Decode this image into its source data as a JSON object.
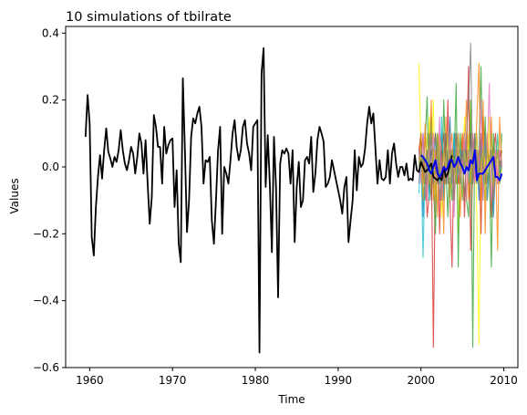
{
  "chart_data": {
    "type": "line",
    "title": "10 simulations of tbilrate",
    "xlabel": "Time",
    "ylabel": "Values",
    "xlim": [
      1957.1,
      2011.7
    ],
    "ylim": [
      -0.6,
      0.42
    ],
    "xticks": [
      1960,
      1970,
      1980,
      1990,
      2000,
      2010
    ],
    "yticks": [
      -0.6,
      -0.4,
      -0.2,
      0.0,
      0.2,
      0.4
    ],
    "ytick_labels": [
      "−0.6",
      "−0.4",
      "−0.2",
      "0.0",
      "0.2",
      "0.4"
    ],
    "grid": false,
    "legend": "none",
    "observed": {
      "color": "#000000",
      "x_start": 1959.5,
      "x_step": 0.25,
      "y": [
        0.09,
        0.215,
        0.13,
        -0.21,
        -0.265,
        -0.12,
        -0.03,
        0.035,
        -0.035,
        0.05,
        0.115,
        0.045,
        0.025,
        0.0,
        0.03,
        0.015,
        0.05,
        0.11,
        0.05,
        0.01,
        -0.01,
        0.02,
        0.06,
        0.04,
        -0.02,
        0.03,
        0.1,
        0.07,
        -0.02,
        0.08,
        -0.05,
        -0.17,
        -0.09,
        0.155,
        0.12,
        0.06,
        0.06,
        -0.05,
        0.12,
        0.04,
        0.065,
        0.08,
        0.085,
        -0.12,
        -0.01,
        -0.23,
        -0.285,
        0.265,
        0.05,
        -0.195,
        -0.1,
        0.09,
        0.145,
        0.13,
        0.16,
        0.18,
        0.12,
        -0.05,
        0.02,
        0.015,
        0.03,
        -0.16,
        -0.23,
        -0.1,
        0.05,
        0.12,
        -0.2,
        0.0,
        -0.02,
        -0.05,
        0.02,
        0.1,
        0.14,
        0.06,
        0.02,
        0.05,
        0.12,
        0.14,
        0.07,
        0.04,
        -0.01,
        0.12,
        0.13,
        0.14,
        -0.555,
        0.28,
        0.355,
        -0.06,
        0.095,
        -0.05,
        -0.255,
        0.09,
        -0.06,
        -0.39,
        0.01,
        0.05,
        0.04,
        0.055,
        0.04,
        -0.05,
        0.05,
        -0.225,
        -0.06,
        0.015,
        -0.12,
        -0.1,
        0.02,
        0.03,
        0.01,
        0.09,
        -0.075,
        -0.02,
        0.08,
        0.12,
        0.1,
        0.075,
        -0.06,
        -0.05,
        -0.03,
        0.02,
        -0.01,
        -0.04,
        -0.07,
        -0.1,
        -0.14,
        -0.06,
        -0.03,
        -0.225,
        -0.16,
        -0.1,
        0.05,
        -0.07,
        0.03,
        0.0,
        0.01,
        0.055,
        0.13,
        0.18,
        0.13,
        0.16,
        0.055,
        -0.05,
        0.02,
        -0.035,
        -0.04,
        -0.03,
        0.05,
        -0.05,
        0.04,
        0.07,
        0.01,
        -0.03,
        0.0,
        0.0,
        -0.025,
        0.01,
        -0.04,
        -0.035,
        -0.04,
        0.035,
        -0.01,
        -0.015,
        0.015,
        0.0,
        -0.015,
        -0.01,
        0.0,
        0.01,
        -0.03,
        -0.035,
        -0.04,
        -0.03,
        -0.04,
        0.0,
        -0.03,
        -0.02,
        0.01,
        0.035
      ]
    },
    "forecast": {
      "color": "#0000ee",
      "x_start": 2000.0,
      "x_step": 0.25,
      "y": [
        0.035,
        0.03,
        0.02,
        0.01,
        -0.01,
        -0.02,
        0.0,
        0.02,
        -0.02,
        -0.03,
        -0.02,
        0.0,
        -0.01,
        0.0,
        0.02,
        0.02,
        0.0,
        0.01,
        0.03,
        0.01,
        0.0,
        -0.02,
        0.0,
        -0.01,
        0.02,
        0.01,
        0.05,
        -0.04,
        -0.02,
        -0.02,
        -0.02,
        -0.01,
        0.0,
        0.01,
        0.02,
        0.03,
        -0.03,
        -0.03,
        -0.04,
        -0.02
      ]
    },
    "simulations": {
      "x_start": 1999.75,
      "x_step": 0.25,
      "series": [
        {
          "color": "#ffff00",
          "y": [
            0.31,
            0.05,
            -0.05,
            0.1,
            -0.02,
            0.15,
            -0.08,
            0.2,
            -0.1,
            0.05,
            0.02,
            -0.15,
            0.03,
            0.08,
            -0.05,
            0.12,
            -0.06,
            0.02,
            0.1,
            -0.2,
            0.05,
            0.0,
            0.15,
            -0.1,
            0.05,
            0.2,
            -0.05,
            0.1,
            -0.15,
            -0.53,
            0.03,
            0.1,
            0.0,
            -0.05,
            0.15,
            -0.1,
            0.05,
            -0.02,
            0.1,
            0.0,
            0.05
          ]
        },
        {
          "color": "#d62728",
          "y": [
            0.05,
            0.1,
            -0.1,
            0.0,
            -0.15,
            -0.08,
            0.05,
            -0.54,
            0.02,
            0.1,
            -0.2,
            0.05,
            0.1,
            -0.05,
            0.2,
            -0.1,
            -0.3,
            0.05,
            0.1,
            -0.05,
            0.0,
            0.1,
            -0.15,
            0.05,
            0.3,
            -0.25,
            0.0,
            0.1,
            -0.05,
            0.05,
            -0.2,
            0.15,
            0.05,
            -0.1,
            0.0,
            -0.15,
            0.05,
            0.1,
            -0.05,
            0.05,
            0.0
          ]
        },
        {
          "color": "#2ca02c",
          "y": [
            0.0,
            0.1,
            0.0,
            0.08,
            0.21,
            -0.1,
            0.15,
            -0.05,
            -0.2,
            0.1,
            0.05,
            -0.1,
            0.2,
            0.0,
            -0.15,
            0.05,
            -0.1,
            0.0,
            0.25,
            -0.3,
            0.1,
            0.0,
            0.05,
            -0.1,
            -0.15,
            0.2,
            -0.54,
            0.1,
            0.0,
            0.05,
            0.3,
            -0.1,
            0.15,
            -0.05,
            0.0,
            -0.3,
            0.1,
            0.0,
            0.05,
            -0.05,
            0.1
          ]
        },
        {
          "color": "#1f77b4",
          "y": [
            0.0,
            0.05,
            -0.15,
            0.0,
            -0.05,
            0.1,
            0.02,
            -0.05,
            0.0,
            0.08,
            -0.05,
            0.1,
            -0.1,
            0.05,
            0.0,
            0.15,
            -0.05,
            0.1,
            -0.05,
            0.0,
            0.05,
            -0.1,
            0.1,
            0.0,
            0.05,
            -0.05,
            0.1,
            0.0,
            0.05,
            -0.1,
            0.08,
            0.0,
            -0.05,
            0.05,
            0.0,
            0.05,
            -0.15,
            0.0,
            0.05,
            -0.02,
            0.02
          ]
        },
        {
          "color": "#17becf",
          "y": [
            -0.08,
            0.05,
            -0.27,
            0.0,
            0.05,
            -0.1,
            0.02,
            -0.05,
            0.1,
            0.0,
            -0.05,
            0.15,
            -0.1,
            0.0,
            0.05,
            -0.05,
            0.0,
            0.1,
            -0.05,
            0.0,
            0.05,
            -0.1,
            0.05,
            0.0,
            -0.05,
            0.1,
            0.0,
            0.05,
            -0.05,
            0.0,
            0.05,
            -0.05,
            0.1,
            -0.1,
            0.0,
            0.05,
            -0.05,
            0.0,
            0.1,
            -0.05,
            0.0
          ]
        },
        {
          "color": "#ff7f0e",
          "y": [
            0.02,
            0.1,
            -0.05,
            0.13,
            -0.1,
            0.05,
            0.2,
            -0.1,
            0.05,
            -0.15,
            0.1,
            0.05,
            -0.2,
            0.15,
            -0.05,
            0.05,
            0.1,
            -0.1,
            0.0,
            0.05,
            -0.15,
            0.1,
            0.05,
            0.2,
            -0.1,
            0.0,
            0.1,
            -0.05,
            0.15,
            0.31,
            -0.1,
            0.2,
            -0.2,
            0.1,
            0.0,
            0.15,
            -0.1,
            0.05,
            -0.25,
            0.15,
            0.0
          ]
        },
        {
          "color": "#8c564b",
          "y": [
            0.05,
            0.0,
            0.1,
            -0.05,
            0.05,
            0.0,
            -0.1,
            0.05,
            0.1,
            -0.05,
            0.0,
            0.05,
            -0.05,
            0.1,
            0.0,
            -0.1,
            0.05,
            0.0,
            -0.05,
            0.1,
            0.0,
            0.05,
            -0.1,
            0.05,
            0.0,
            0.1,
            -0.05,
            0.0,
            0.05,
            -0.05,
            0.1,
            0.0,
            -0.05,
            0.05,
            0.0,
            0.1,
            -0.05,
            0.0,
            0.05,
            0.0,
            0.05
          ]
        },
        {
          "color": "#e377c2",
          "y": [
            0.05,
            -0.05,
            0.1,
            0.0,
            -0.1,
            0.05,
            0.0,
            0.1,
            -0.05,
            0.0,
            0.15,
            -0.1,
            0.05,
            0.0,
            -0.05,
            0.1,
            0.0,
            -0.15,
            0.05,
            0.1,
            -0.05,
            0.0,
            0.1,
            -0.1,
            0.05,
            0.0,
            0.1,
            -0.05,
            0.05,
            0.0,
            0.2,
            -0.1,
            0.0,
            0.05,
            0.25,
            -0.1,
            0.0,
            0.05,
            -0.05,
            0.05,
            0.0
          ]
        },
        {
          "color": "#7f7f7f",
          "y": [
            -0.05,
            0.05,
            0.0,
            -0.1,
            0.05,
            0.0,
            0.1,
            -0.05,
            0.0,
            0.05,
            -0.1,
            0.0,
            0.05,
            0.1,
            -0.05,
            0.0,
            0.05,
            -0.1,
            0.1,
            0.0,
            -0.05,
            0.05,
            0.0,
            0.1,
            0.2,
            0.37,
            -0.05,
            0.1,
            0.0,
            -0.05,
            0.05,
            0.0,
            0.1,
            -0.05,
            0.0,
            0.05,
            -0.1,
            0.0,
            0.05,
            0.0,
            0.02
          ]
        },
        {
          "color": "#bcbd22",
          "y": [
            0.0,
            0.05,
            -0.1,
            0.0,
            0.1,
            -0.05,
            0.0,
            0.05,
            -0.1,
            0.1,
            0.0,
            -0.05,
            0.05,
            0.0,
            0.1,
            -0.1,
            0.05,
            0.0,
            -0.05,
            0.1,
            0.0,
            -0.1,
            0.05,
            0.0,
            0.1,
            -0.05,
            0.05,
            0.0,
            0.1,
            -0.05,
            0.0,
            0.05,
            -0.1,
            0.05,
            0.0,
            0.1,
            -0.05,
            0.0,
            0.05,
            -0.05,
            0.0
          ]
        }
      ]
    }
  }
}
